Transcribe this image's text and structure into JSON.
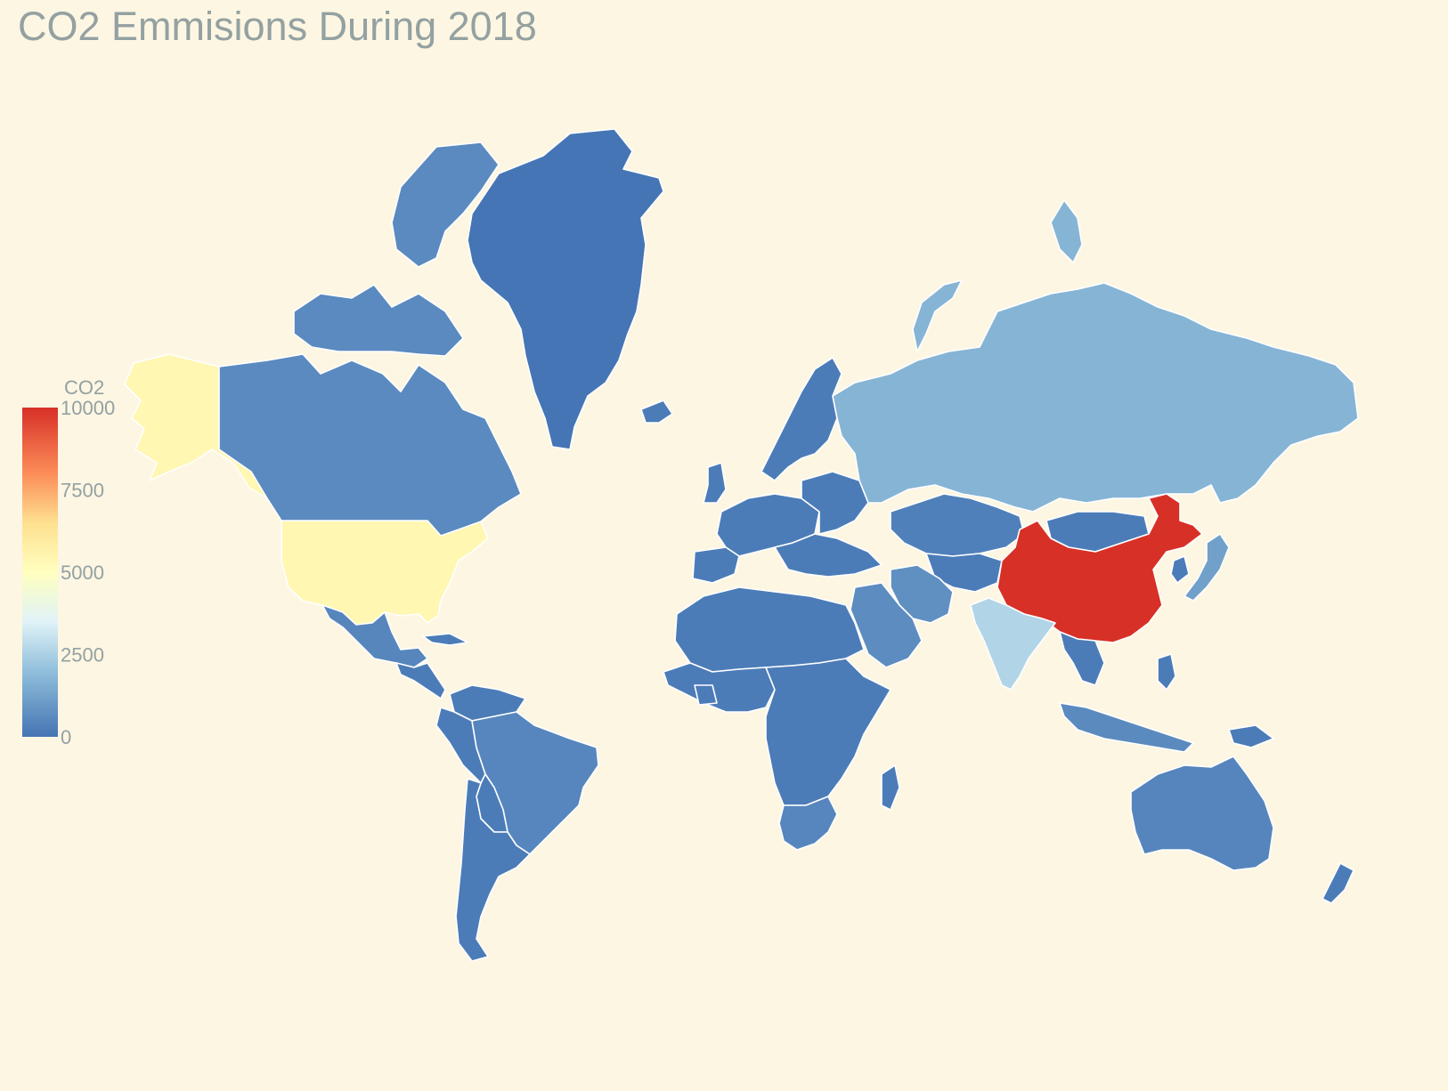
{
  "title": "CO2 Emmisions During 2018",
  "colorbar": {
    "title": "CO2",
    "min": 0,
    "max": 10000,
    "ticks": [
      {
        "value": 10000,
        "label": "10000"
      },
      {
        "value": 7500,
        "label": "7500"
      },
      {
        "value": 5000,
        "label": "5000"
      },
      {
        "value": 2500,
        "label": "2500"
      },
      {
        "value": 0,
        "label": "0"
      }
    ],
    "colorscale": [
      {
        "stop": 0.0,
        "color": "#4575b4"
      },
      {
        "stop": 0.2,
        "color": "#91bfdb"
      },
      {
        "stop": 0.35,
        "color": "#e0f3f8"
      },
      {
        "stop": 0.5,
        "color": "#ffffbf"
      },
      {
        "stop": 0.65,
        "color": "#fee090"
      },
      {
        "stop": 0.8,
        "color": "#fc8d59"
      },
      {
        "stop": 1.0,
        "color": "#d73027"
      }
    ]
  },
  "colors": {
    "background": "#fdf6e3",
    "border": "#ffffff",
    "text": "#93a1a1"
  },
  "map_data": {
    "type": "choropleth",
    "projection": "mercator",
    "value_label": "CO2",
    "regions": [
      {
        "name": "China",
        "value": 10000
      },
      {
        "name": "United States",
        "value": 5400
      },
      {
        "name": "India",
        "value": 2600
      },
      {
        "name": "Russia",
        "value": 1700
      },
      {
        "name": "Japan",
        "value": 1150
      },
      {
        "name": "Germany",
        "value": 750
      },
      {
        "name": "Iran",
        "value": 720
      },
      {
        "name": "Saudi Arabia",
        "value": 620
      },
      {
        "name": "Canada",
        "value": 560
      },
      {
        "name": "Brazil",
        "value": 460
      },
      {
        "name": "Mexico",
        "value": 470
      },
      {
        "name": "Australia",
        "value": 420
      },
      {
        "name": "Indonesia",
        "value": 580
      },
      {
        "name": "Greenland",
        "value": 10
      },
      {
        "name": "South Africa",
        "value": 450
      },
      {
        "name": "Kazakhstan",
        "value": 300
      }
    ]
  }
}
